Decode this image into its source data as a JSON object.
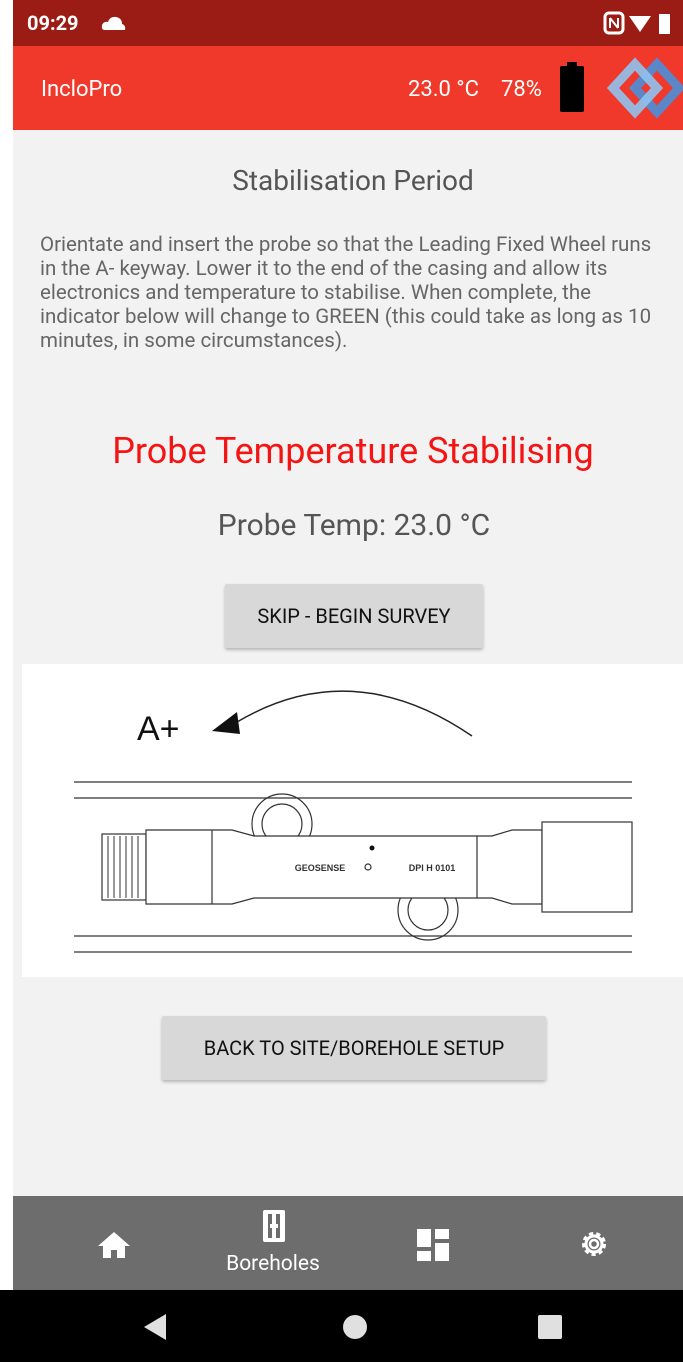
{
  "status_bar": {
    "time": "09:29"
  },
  "app_bar": {
    "title": "IncloPro",
    "temperature": "23.0 °C",
    "battery": "78%"
  },
  "content": {
    "heading": "Stabilisation Period",
    "description": "Orientate and insert the probe so that the Leading Fixed Wheel runs in the A- keyway.  Lower it to the end of the casing and allow its electronics and temperature to stabilise.  When complete, the indicator below will change to GREEN (this could take as long as 10 minutes, in some circumstances).",
    "status": "Probe Temperature Stabilising",
    "probe_temp": "Probe Temp: 23.0 °C",
    "skip_button": "SKIP - BEGIN SURVEY",
    "diagram": {
      "direction_label": "A+",
      "brand": "GEOSENSE",
      "model": "DPI H 0101"
    },
    "back_button": "BACK TO SITE/BOREHOLE SETUP"
  },
  "bottom_nav": {
    "boreholes": "Boreholes"
  }
}
